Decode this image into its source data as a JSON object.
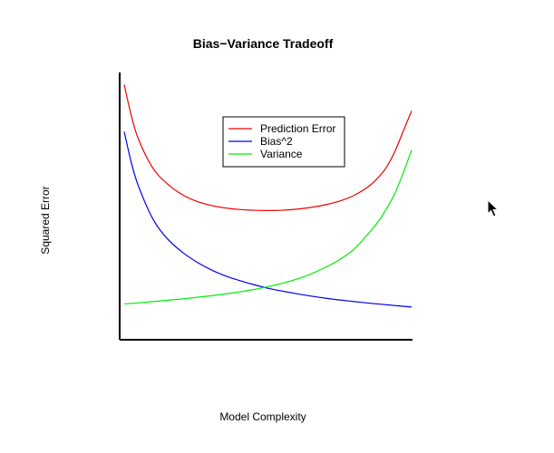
{
  "chart_data": {
    "type": "line",
    "title": "Bias−Variance Tradeoff",
    "xlabel": "Model Complexity",
    "ylabel": "Squared Error",
    "x_ticks_shown": false,
    "y_ticks_shown": false,
    "grid": false,
    "legend_position": "top-center",
    "xlim": [
      0,
      1
    ],
    "ylim": [
      0,
      1
    ],
    "x": [
      0.0,
      0.025,
      0.05,
      0.1,
      0.15,
      0.2,
      0.25,
      0.3,
      0.35,
      0.4,
      0.45,
      0.5,
      0.55,
      0.6,
      0.65,
      0.7,
      0.75,
      0.8,
      0.85,
      0.88,
      0.91,
      0.94,
      0.97,
      1.0
    ],
    "series": [
      {
        "name": "Prediction Error",
        "color": "#ee0000",
        "values": [
          0.96,
          0.84,
          0.75,
          0.64,
          0.58,
          0.54,
          0.514,
          0.498,
          0.488,
          0.482,
          0.479,
          0.478,
          0.479,
          0.483,
          0.49,
          0.5,
          0.514,
          0.536,
          0.57,
          0.6,
          0.64,
          0.7,
          0.78,
          0.86
        ]
      },
      {
        "name": "Bias^2",
        "color": "#0000ee",
        "values": [
          0.78,
          0.66,
          0.57,
          0.445,
          0.37,
          0.32,
          0.282,
          0.252,
          0.228,
          0.21,
          0.194,
          0.18,
          0.169,
          0.159,
          0.15,
          0.142,
          0.135,
          0.129,
          0.123,
          0.12,
          0.117,
          0.114,
          0.111,
          0.108
        ]
      },
      {
        "name": "Variance",
        "color": "#00ee00",
        "values": [
          0.12,
          0.122,
          0.124,
          0.129,
          0.134,
          0.139,
          0.145,
          0.151,
          0.158,
          0.166,
          0.175,
          0.186,
          0.199,
          0.215,
          0.235,
          0.26,
          0.29,
          0.33,
          0.39,
          0.43,
          0.48,
          0.54,
          0.62,
          0.71
        ]
      }
    ]
  },
  "icons": {
    "cursor": "mouse-pointer-icon"
  }
}
